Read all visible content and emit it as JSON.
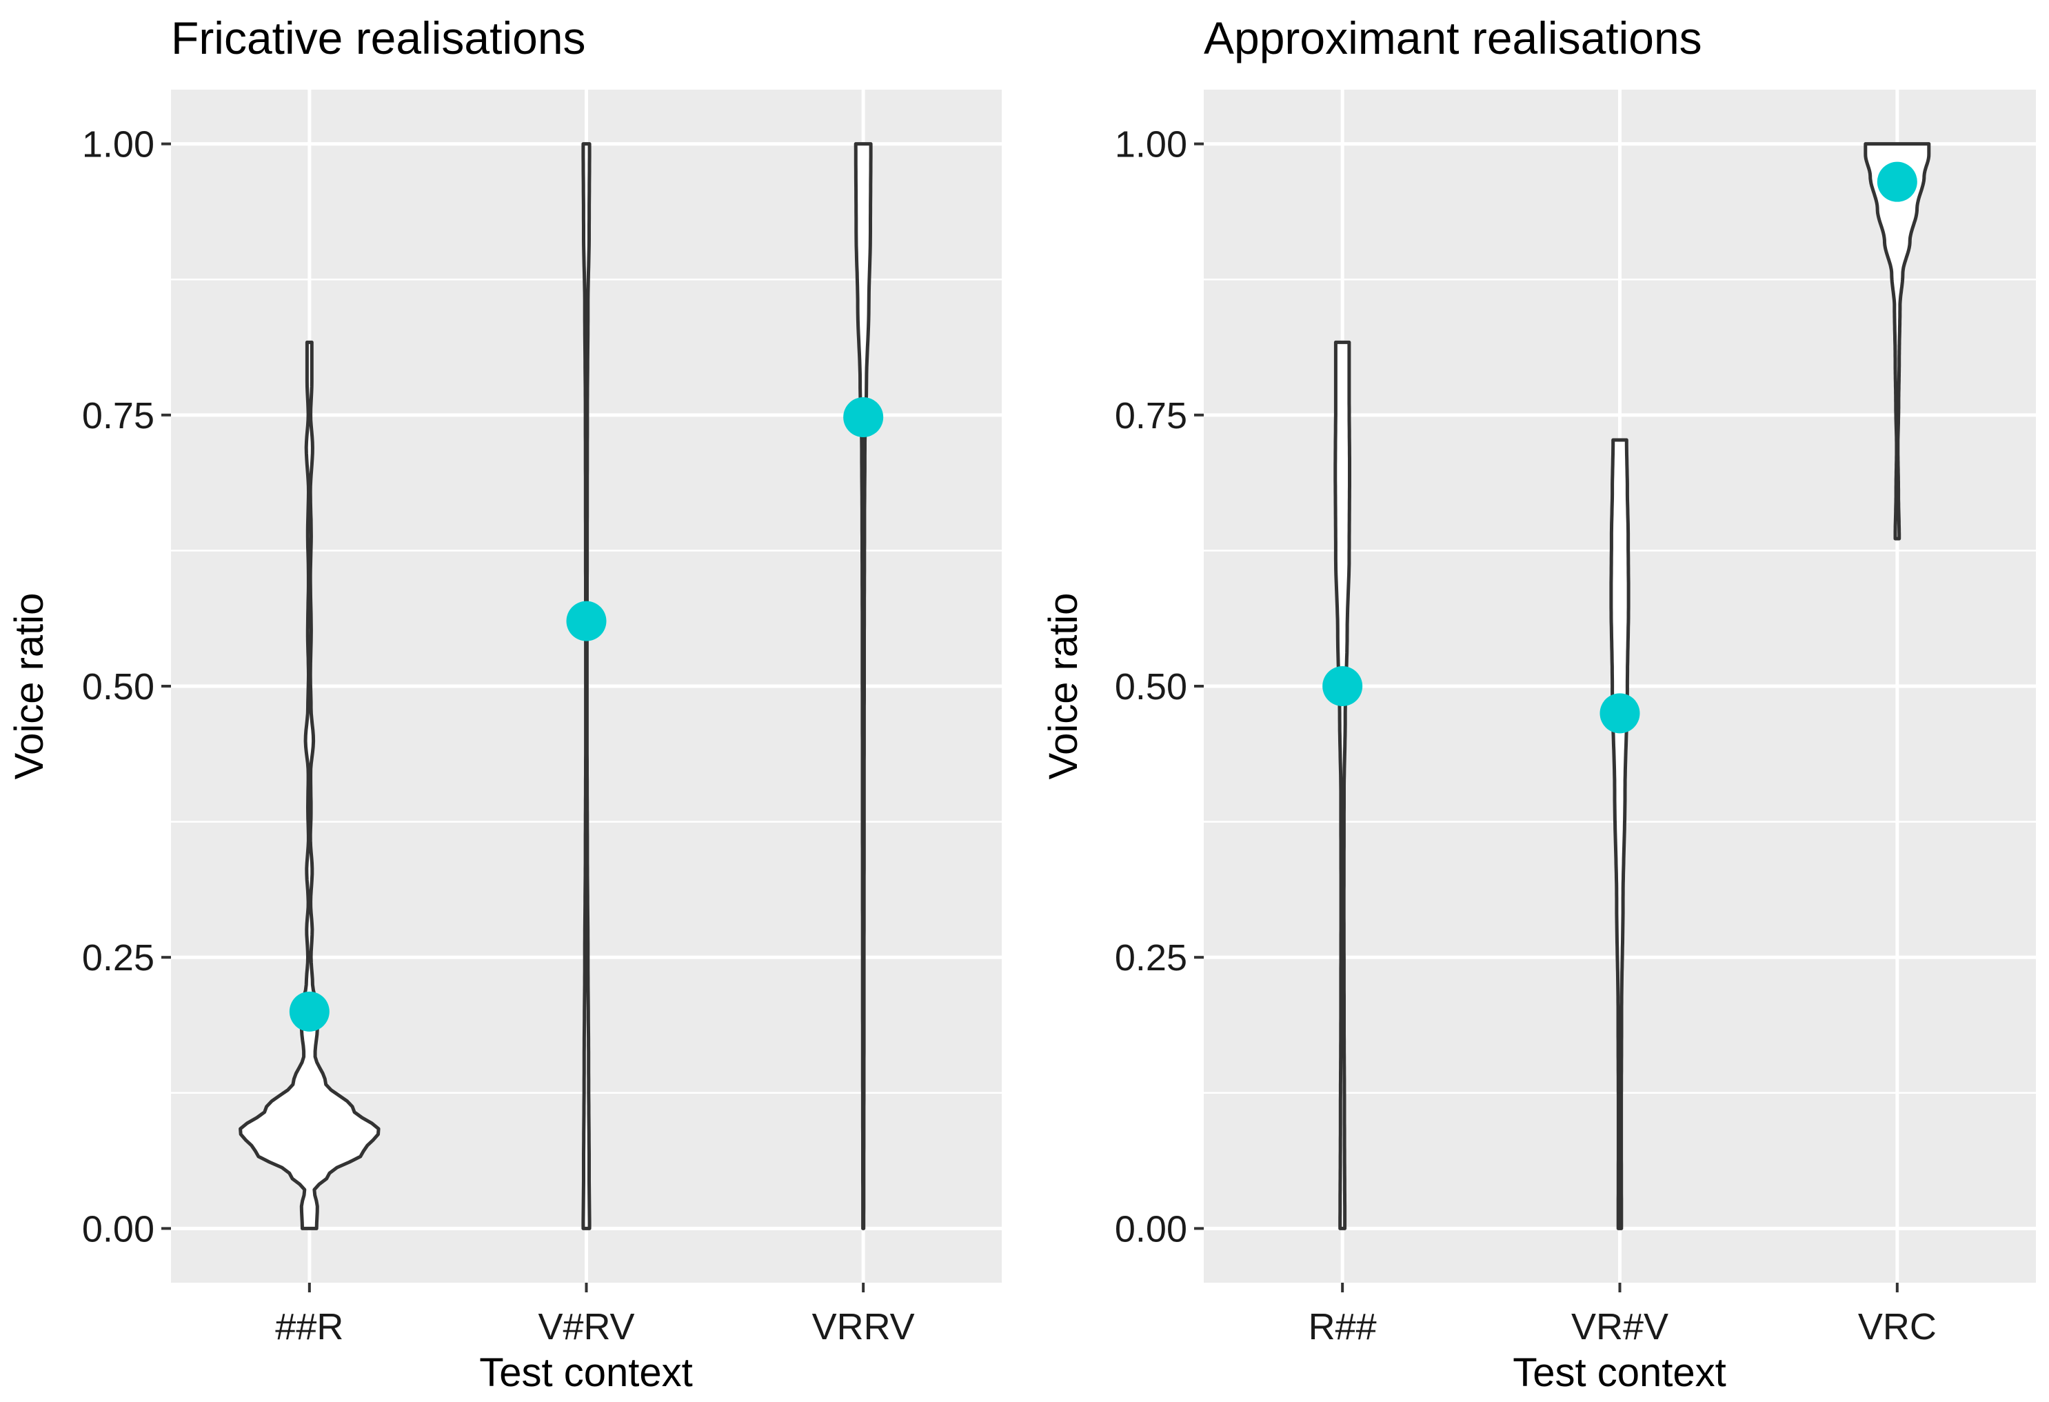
{
  "chart_data": [
    {
      "type": "violin",
      "title": "Fricative realisations",
      "xlabel": "Test context",
      "ylabel": "Voice ratio",
      "ylim": [
        -0.05,
        1.05
      ],
      "yticks": [
        "0.00",
        "0.25",
        "0.50",
        "0.75",
        "1.00"
      ],
      "categories": [
        "##R",
        "V#RV",
        "VRRV"
      ],
      "means": [
        0.2,
        0.56,
        0.748
      ],
      "ranges": [
        [
          0.0,
          0.817
        ],
        [
          0.0,
          1.0
        ],
        [
          0.0,
          1.0
        ]
      ],
      "mean_color": "#00CDD0",
      "densities": [
        [
          [
            0.0,
            0.09
          ],
          [
            0.02,
            0.1
          ],
          [
            0.035,
            0.06
          ],
          [
            0.05,
            0.25
          ],
          [
            0.07,
            0.68
          ],
          [
            0.09,
            0.88
          ],
          [
            0.11,
            0.55
          ],
          [
            0.135,
            0.2
          ],
          [
            0.16,
            0.07
          ],
          [
            0.185,
            0.1
          ],
          [
            0.205,
            0.09
          ],
          [
            0.225,
            0.04
          ],
          [
            0.25,
            0.02
          ],
          [
            0.275,
            0.035
          ],
          [
            0.3,
            0.015
          ],
          [
            0.33,
            0.035
          ],
          [
            0.36,
            0.012
          ],
          [
            0.385,
            0.02
          ],
          [
            0.42,
            0.015
          ],
          [
            0.45,
            0.05
          ],
          [
            0.48,
            0.02
          ],
          [
            0.51,
            0.012
          ],
          [
            0.55,
            0.022
          ],
          [
            0.6,
            0.012
          ],
          [
            0.64,
            0.022
          ],
          [
            0.68,
            0.012
          ],
          [
            0.72,
            0.04
          ],
          [
            0.75,
            0.015
          ],
          [
            0.78,
            0.03
          ],
          [
            0.817,
            0.03
          ]
        ],
        [
          [
            0.0,
            0.04
          ],
          [
            0.05,
            0.035
          ],
          [
            0.15,
            0.028
          ],
          [
            0.25,
            0.02
          ],
          [
            0.35,
            0.012
          ],
          [
            0.45,
            0.008
          ],
          [
            0.55,
            0.008
          ],
          [
            0.65,
            0.01
          ],
          [
            0.75,
            0.012
          ],
          [
            0.85,
            0.02
          ],
          [
            0.92,
            0.035
          ],
          [
            1.0,
            0.04
          ]
        ],
        [
          [
            0.0,
            0.005
          ],
          [
            0.2,
            0.008
          ],
          [
            0.4,
            0.01
          ],
          [
            0.55,
            0.012
          ],
          [
            0.65,
            0.015
          ],
          [
            0.72,
            0.02
          ],
          [
            0.78,
            0.04
          ],
          [
            0.85,
            0.07
          ],
          [
            0.92,
            0.09
          ],
          [
            1.0,
            0.095
          ]
        ]
      ]
    },
    {
      "type": "violin",
      "title": "Approximant realisations",
      "xlabel": "Test context",
      "ylabel": "Voice ratio",
      "ylim": [
        -0.05,
        1.05
      ],
      "yticks": [
        "0.00",
        "0.25",
        "0.50",
        "0.75",
        "1.00"
      ],
      "categories": [
        "R##",
        "VR#V",
        "VRC"
      ],
      "means": [
        0.5,
        0.475,
        0.965
      ],
      "ranges": [
        [
          0.0,
          0.817
        ],
        [
          0.0,
          0.727
        ],
        [
          0.636,
          1.0
        ]
      ],
      "mean_color": "#00CDD0",
      "densities": [
        [
          [
            0.0,
            0.03
          ],
          [
            0.1,
            0.025
          ],
          [
            0.2,
            0.02
          ],
          [
            0.3,
            0.018
          ],
          [
            0.4,
            0.02
          ],
          [
            0.47,
            0.035
          ],
          [
            0.55,
            0.06
          ],
          [
            0.62,
            0.085
          ],
          [
            0.7,
            0.09
          ],
          [
            0.76,
            0.085
          ],
          [
            0.817,
            0.085
          ]
        ],
        [
          [
            0.0,
            0.02
          ],
          [
            0.1,
            0.018
          ],
          [
            0.2,
            0.022
          ],
          [
            0.3,
            0.04
          ],
          [
            0.4,
            0.065
          ],
          [
            0.5,
            0.095
          ],
          [
            0.58,
            0.11
          ],
          [
            0.64,
            0.105
          ],
          [
            0.68,
            0.095
          ],
          [
            0.727,
            0.085
          ]
        ],
        [
          [
            0.636,
            0.025
          ],
          [
            0.68,
            0.015
          ],
          [
            0.72,
            0.008
          ],
          [
            0.76,
            0.018
          ],
          [
            0.8,
            0.025
          ],
          [
            0.85,
            0.035
          ],
          [
            0.88,
            0.07
          ],
          [
            0.91,
            0.16
          ],
          [
            0.94,
            0.25
          ],
          [
            0.97,
            0.34
          ],
          [
            0.99,
            0.4
          ],
          [
            1.0,
            0.4
          ]
        ]
      ]
    }
  ]
}
